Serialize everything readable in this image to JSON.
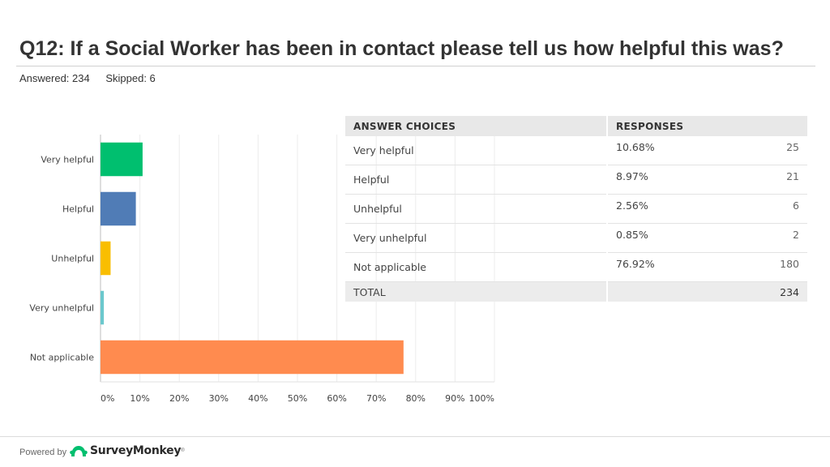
{
  "header": {
    "title": "Q12: If a Social Worker has been in contact please tell us how helpful this was?",
    "answered": "Answered: 234",
    "skipped": "Skipped: 6"
  },
  "chart_data": {
    "type": "bar",
    "orientation": "horizontal",
    "categories": [
      "Very helpful",
      "Helpful",
      "Unhelpful",
      "Very unhelpful",
      "Not applicable"
    ],
    "values": [
      10.68,
      8.97,
      2.56,
      0.85,
      76.92
    ],
    "colors": [
      "#00bf6f",
      "#507cb6",
      "#f9be00",
      "#6bc8cd",
      "#ff8b4f"
    ],
    "xlim": [
      0,
      100
    ],
    "xticks": [
      "0%",
      "10%",
      "20%",
      "30%",
      "40%",
      "50%",
      "60%",
      "70%",
      "80%",
      "90%",
      "100%"
    ],
    "grid": true
  },
  "table": {
    "headers": [
      "ANSWER CHOICES",
      "RESPONSES"
    ],
    "rows": [
      {
        "choice": "Very helpful",
        "percent": "10.68%",
        "count": "25"
      },
      {
        "choice": "Helpful",
        "percent": "8.97%",
        "count": "21"
      },
      {
        "choice": "Unhelpful",
        "percent": "2.56%",
        "count": "6"
      },
      {
        "choice": "Very unhelpful",
        "percent": "0.85%",
        "count": "2"
      },
      {
        "choice": "Not applicable",
        "percent": "76.92%",
        "count": "180"
      }
    ],
    "total_label": "TOTAL",
    "total_value": "234"
  },
  "footer": {
    "powered_by": "Powered by",
    "brand": "SurveyMonkey",
    "brand_mark": "®",
    "brand_icon": "surveymonkey-logo-icon",
    "brand_color": "#00bf6f"
  }
}
